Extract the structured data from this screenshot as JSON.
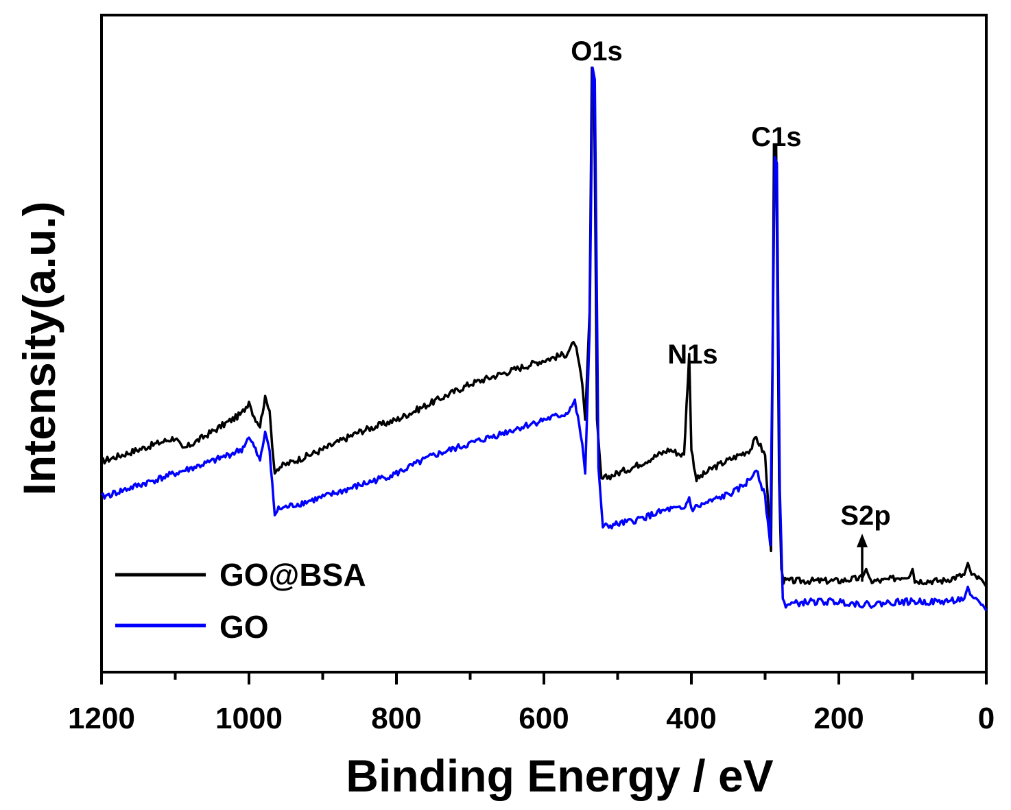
{
  "chart_data": {
    "type": "line",
    "xlabel": "Binding Energy / eV",
    "ylabel": "Intensity(a.u.)",
    "xlim": [
      1200,
      0
    ],
    "ylim": [
      0,
      100
    ],
    "x_ticks": [
      1200,
      1000,
      800,
      600,
      400,
      200,
      0
    ],
    "x_tick_labels": [
      "1200",
      "1000",
      "800",
      "600",
      "400",
      "200",
      "0"
    ],
    "y_ticks_shown": false,
    "series": [
      {
        "name": "GO@BSA",
        "color": "#000000",
        "points": [
          [
            1200,
            33
          ],
          [
            1150,
            35
          ],
          [
            1100,
            37
          ],
          [
            1090,
            35
          ],
          [
            1050,
            38
          ],
          [
            1010,
            41
          ],
          [
            1000,
            43
          ],
          [
            995,
            41
          ],
          [
            985,
            39
          ],
          [
            978,
            44
          ],
          [
            972,
            41
          ],
          [
            965,
            31
          ],
          [
            960,
            32
          ],
          [
            900,
            35
          ],
          [
            850,
            38
          ],
          [
            800,
            40
          ],
          [
            750,
            43
          ],
          [
            700,
            46
          ],
          [
            650,
            48
          ],
          [
            600,
            50
          ],
          [
            570,
            51
          ],
          [
            558,
            53
          ],
          [
            548,
            46
          ],
          [
            544,
            40
          ],
          [
            538,
            58
          ],
          [
            535,
            99
          ],
          [
            532,
            97
          ],
          [
            528,
            40
          ],
          [
            522,
            30
          ],
          [
            480,
            32
          ],
          [
            430,
            35
          ],
          [
            410,
            34
          ],
          [
            403,
            51
          ],
          [
            400,
            35
          ],
          [
            393,
            30
          ],
          [
            370,
            32
          ],
          [
            320,
            35
          ],
          [
            312,
            37
          ],
          [
            300,
            34
          ],
          [
            292,
            18
          ],
          [
            290,
            48
          ],
          [
            288,
            86
          ],
          [
            285,
            86
          ],
          [
            281,
            30
          ],
          [
            278,
            15
          ],
          [
            275,
            13
          ],
          [
            240,
            13
          ],
          [
            200,
            13
          ],
          [
            168,
            13.5
          ],
          [
            163,
            15
          ],
          [
            157,
            13
          ],
          [
            140,
            13
          ],
          [
            103,
            14
          ],
          [
            100,
            15
          ],
          [
            97,
            13
          ],
          [
            60,
            13
          ],
          [
            30,
            14
          ],
          [
            25,
            16
          ],
          [
            20,
            14
          ],
          [
            5,
            13
          ],
          [
            0,
            12
          ]
        ]
      },
      {
        "name": "GO",
        "color": "#0000ff",
        "points": [
          [
            1200,
            27
          ],
          [
            1150,
            29
          ],
          [
            1100,
            31
          ],
          [
            1050,
            33
          ],
          [
            1010,
            35
          ],
          [
            1000,
            37
          ],
          [
            995,
            36
          ],
          [
            985,
            33
          ],
          [
            978,
            38
          ],
          [
            972,
            35
          ],
          [
            965,
            24
          ],
          [
            960,
            25
          ],
          [
            900,
            27
          ],
          [
            850,
            29
          ],
          [
            800,
            31
          ],
          [
            750,
            34
          ],
          [
            700,
            36
          ],
          [
            650,
            38
          ],
          [
            600,
            40
          ],
          [
            570,
            41
          ],
          [
            558,
            43
          ],
          [
            548,
            36
          ],
          [
            544,
            31
          ],
          [
            538,
            55
          ],
          [
            534,
            99
          ],
          [
            531,
            97
          ],
          [
            526,
            32
          ],
          [
            520,
            22
          ],
          [
            480,
            23
          ],
          [
            430,
            25
          ],
          [
            410,
            25
          ],
          [
            403,
            27
          ],
          [
            400,
            25
          ],
          [
            380,
            26
          ],
          [
            340,
            28
          ],
          [
            320,
            30
          ],
          [
            312,
            32
          ],
          [
            300,
            27
          ],
          [
            293,
            19
          ],
          [
            290,
            50
          ],
          [
            287,
            84
          ],
          [
            284,
            83
          ],
          [
            280,
            28
          ],
          [
            276,
            10
          ],
          [
            272,
            9
          ],
          [
            240,
            9.5
          ],
          [
            200,
            9.5
          ],
          [
            160,
            9
          ],
          [
            120,
            9.5
          ],
          [
            60,
            9.5
          ],
          [
            30,
            10
          ],
          [
            25,
            12
          ],
          [
            20,
            10
          ],
          [
            5,
            9
          ],
          [
            0,
            8
          ]
        ]
      }
    ],
    "annotations": [
      {
        "label": "O1s",
        "x": 535
      },
      {
        "label": "C1s",
        "x": 287
      },
      {
        "label": "N1s",
        "x": 401
      },
      {
        "label": "S2p",
        "x": 163,
        "arrow": true
      }
    ],
    "legend": {
      "placement": "bottom-left",
      "entries": [
        {
          "label": "GO@BSA",
          "color": "#000000"
        },
        {
          "label": "GO",
          "color": "#0000ff"
        }
      ]
    }
  }
}
